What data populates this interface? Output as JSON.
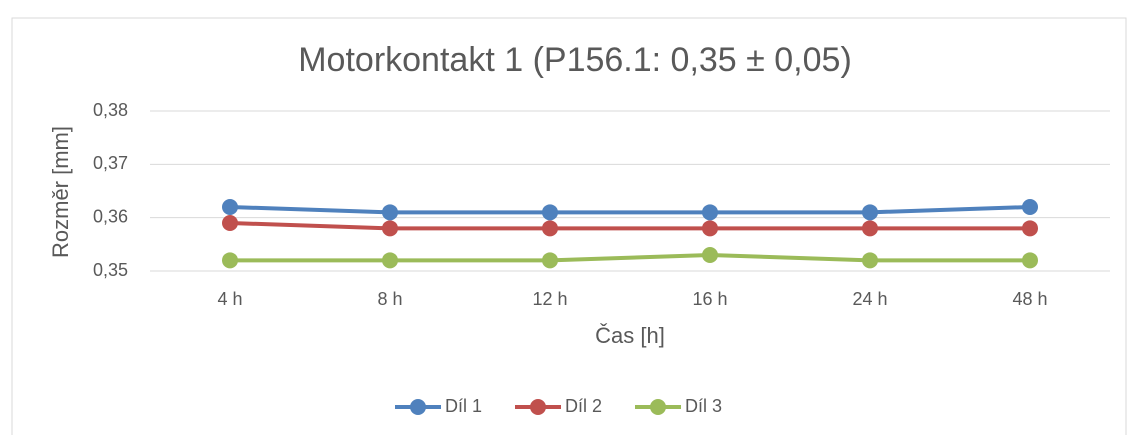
{
  "chart_data": {
    "type": "line",
    "title": "Motorkontakt 1 (P156.1: 0,35 ± 0,05)",
    "xlabel": "Čas [h]",
    "ylabel": "Rozměr [mm]",
    "categories": [
      "4 h",
      "8 h",
      "12 h",
      "16 h",
      "24 h",
      "48 h"
    ],
    "series": [
      {
        "name": "Díl 1",
        "color": "#4f81bd",
        "values": [
          0.362,
          0.361,
          0.361,
          0.361,
          0.361,
          0.362
        ]
      },
      {
        "name": "Díl 2",
        "color": "#c0504d",
        "values": [
          0.359,
          0.358,
          0.358,
          0.358,
          0.358,
          0.358
        ]
      },
      {
        "name": "Díl 3",
        "color": "#9bbb59",
        "values": [
          0.352,
          0.352,
          0.352,
          0.353,
          0.352,
          0.352
        ]
      }
    ],
    "ylim": [
      0.35,
      0.38
    ],
    "yticks": [
      {
        "value": 0.35,
        "label": "0,35"
      },
      {
        "value": 0.36,
        "label": "0,36"
      },
      {
        "value": 0.37,
        "label": "0,37"
      },
      {
        "value": 0.38,
        "label": "0,38"
      }
    ],
    "grid": true,
    "legend": "bottom"
  }
}
